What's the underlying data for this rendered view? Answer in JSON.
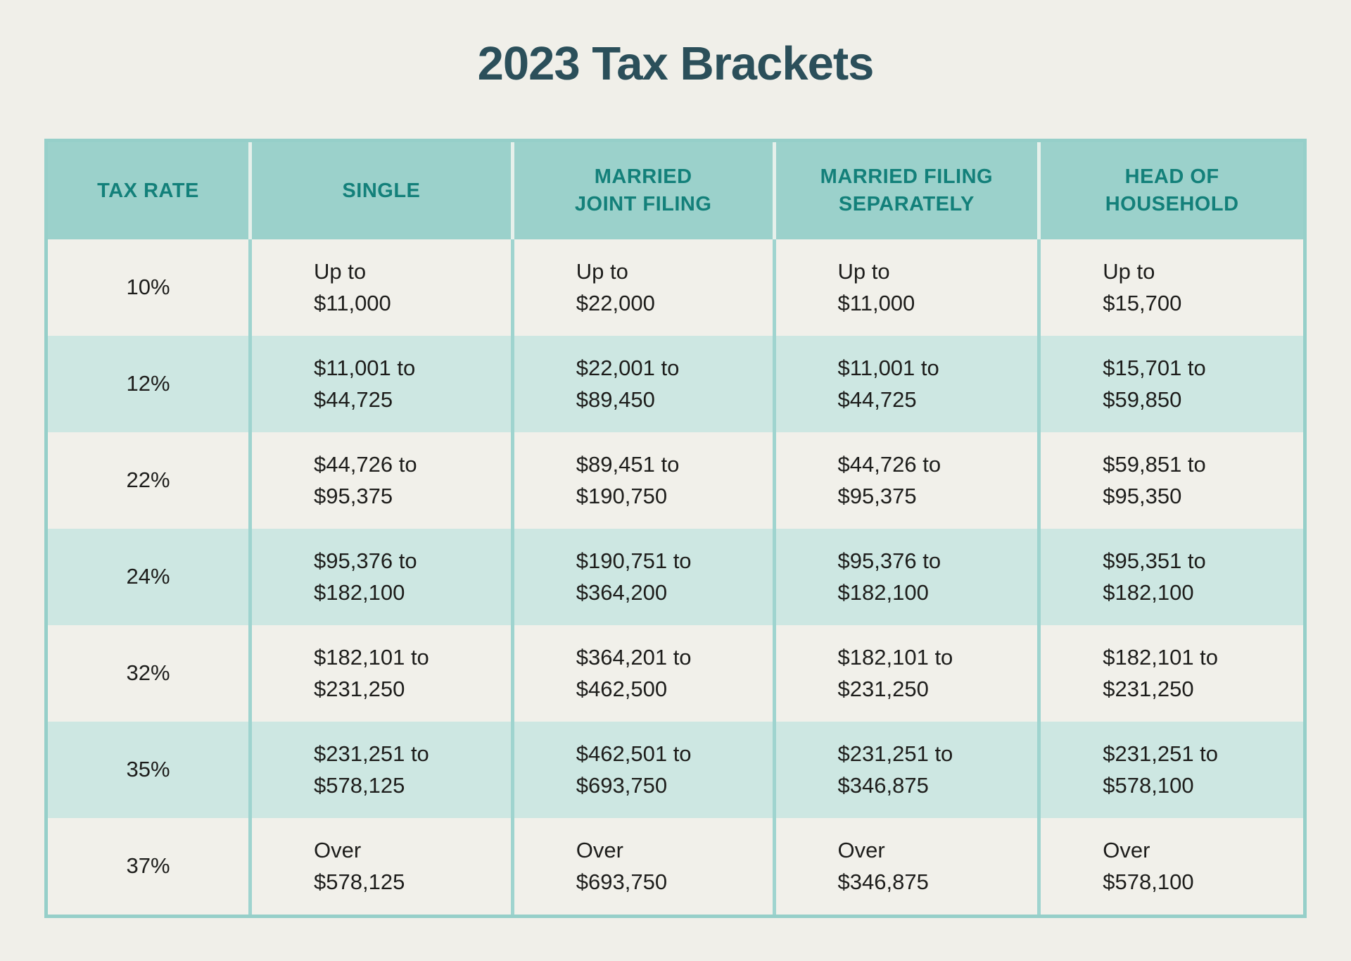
{
  "page": {
    "title": "2023 Tax Brackets",
    "background": "#F0EFE9"
  },
  "colors": {
    "title_text": "#2B4F5A",
    "header_bg": "#9BD1CB",
    "header_text": "#13807A",
    "row_light_bg": "#F1F0EA",
    "row_teal_bg": "#CDE7E2",
    "body_text": "#1D1D1B",
    "body_divider": "#9FD4CF",
    "header_divider": "#E6F0EB",
    "table_border": "#96CFC9"
  },
  "table": {
    "headers": [
      [
        "TAX RATE"
      ],
      [
        "SINGLE"
      ],
      [
        "MARRIED",
        "JOINT FILING"
      ],
      [
        "MARRIED FILING",
        "SEPARATELY"
      ],
      [
        "HEAD OF",
        "HOUSEHOLD"
      ]
    ],
    "rows": [
      {
        "rate": "10%",
        "cells": [
          [
            "Up to",
            "$11,000"
          ],
          [
            "Up to",
            "$22,000"
          ],
          [
            "Up to",
            "$11,000"
          ],
          [
            "Up to",
            "$15,700"
          ]
        ]
      },
      {
        "rate": "12%",
        "cells": [
          [
            "$11,001 to",
            "$44,725"
          ],
          [
            "$22,001 to",
            "$89,450"
          ],
          [
            "$11,001 to",
            "$44,725"
          ],
          [
            "$15,701 to",
            "$59,850"
          ]
        ]
      },
      {
        "rate": "22%",
        "cells": [
          [
            "$44,726 to",
            "$95,375"
          ],
          [
            "$89,451 to",
            "$190,750"
          ],
          [
            "$44,726 to",
            "$95,375"
          ],
          [
            "$59,851 to",
            "$95,350"
          ]
        ]
      },
      {
        "rate": "24%",
        "cells": [
          [
            "$95,376 to",
            "$182,100"
          ],
          [
            "$190,751 to",
            "$364,200"
          ],
          [
            "$95,376 to",
            "$182,100"
          ],
          [
            "$95,351 to",
            "$182,100"
          ]
        ]
      },
      {
        "rate": "32%",
        "cells": [
          [
            "$182,101 to",
            "$231,250"
          ],
          [
            "$364,201 to",
            "$462,500"
          ],
          [
            "$182,101 to",
            "$231,250"
          ],
          [
            "$182,101 to",
            "$231,250"
          ]
        ]
      },
      {
        "rate": "35%",
        "cells": [
          [
            "$231,251 to",
            "$578,125"
          ],
          [
            "$462,501 to",
            "$693,750"
          ],
          [
            "$231,251 to",
            "$346,875"
          ],
          [
            "$231,251 to",
            "$578,100"
          ]
        ]
      },
      {
        "rate": "37%",
        "cells": [
          [
            "Over",
            "$578,125"
          ],
          [
            "Over",
            "$693,750"
          ],
          [
            "Over",
            "$346,875"
          ],
          [
            "Over",
            "$578,100"
          ]
        ]
      }
    ]
  },
  "chart_data": {
    "type": "table",
    "title": "2023 Tax Brackets",
    "columns": [
      "TAX RATE",
      "SINGLE",
      "MARRIED JOINT FILING",
      "MARRIED FILING SEPARATELY",
      "HEAD OF HOUSEHOLD"
    ],
    "rows": [
      [
        "10%",
        "Up to $11,000",
        "Up to $22,000",
        "Up to $11,000",
        "Up to $15,700"
      ],
      [
        "12%",
        "$11,001 to $44,725",
        "$22,001 to $89,450",
        "$11,001 to $44,725",
        "$15,701 to $59,850"
      ],
      [
        "22%",
        "$44,726 to $95,375",
        "$89,451 to $190,750",
        "$44,726 to $95,375",
        "$59,851 to $95,350"
      ],
      [
        "24%",
        "$95,376 to $182,100",
        "$190,751 to $364,200",
        "$95,376 to $182,100",
        "$95,351 to $182,100"
      ],
      [
        "32%",
        "$182,101 to $231,250",
        "$364,201 to $462,500",
        "$182,101 to $231,250",
        "$182,101 to $231,250"
      ],
      [
        "35%",
        "$231,251 to $578,125",
        "$462,501 to $693,750",
        "$231,251 to $346,875",
        "$231,251 to $578,100"
      ],
      [
        "37%",
        "Over $578,125",
        "Over $693,750",
        "Over $346,875",
        "Over $578,100"
      ]
    ]
  }
}
